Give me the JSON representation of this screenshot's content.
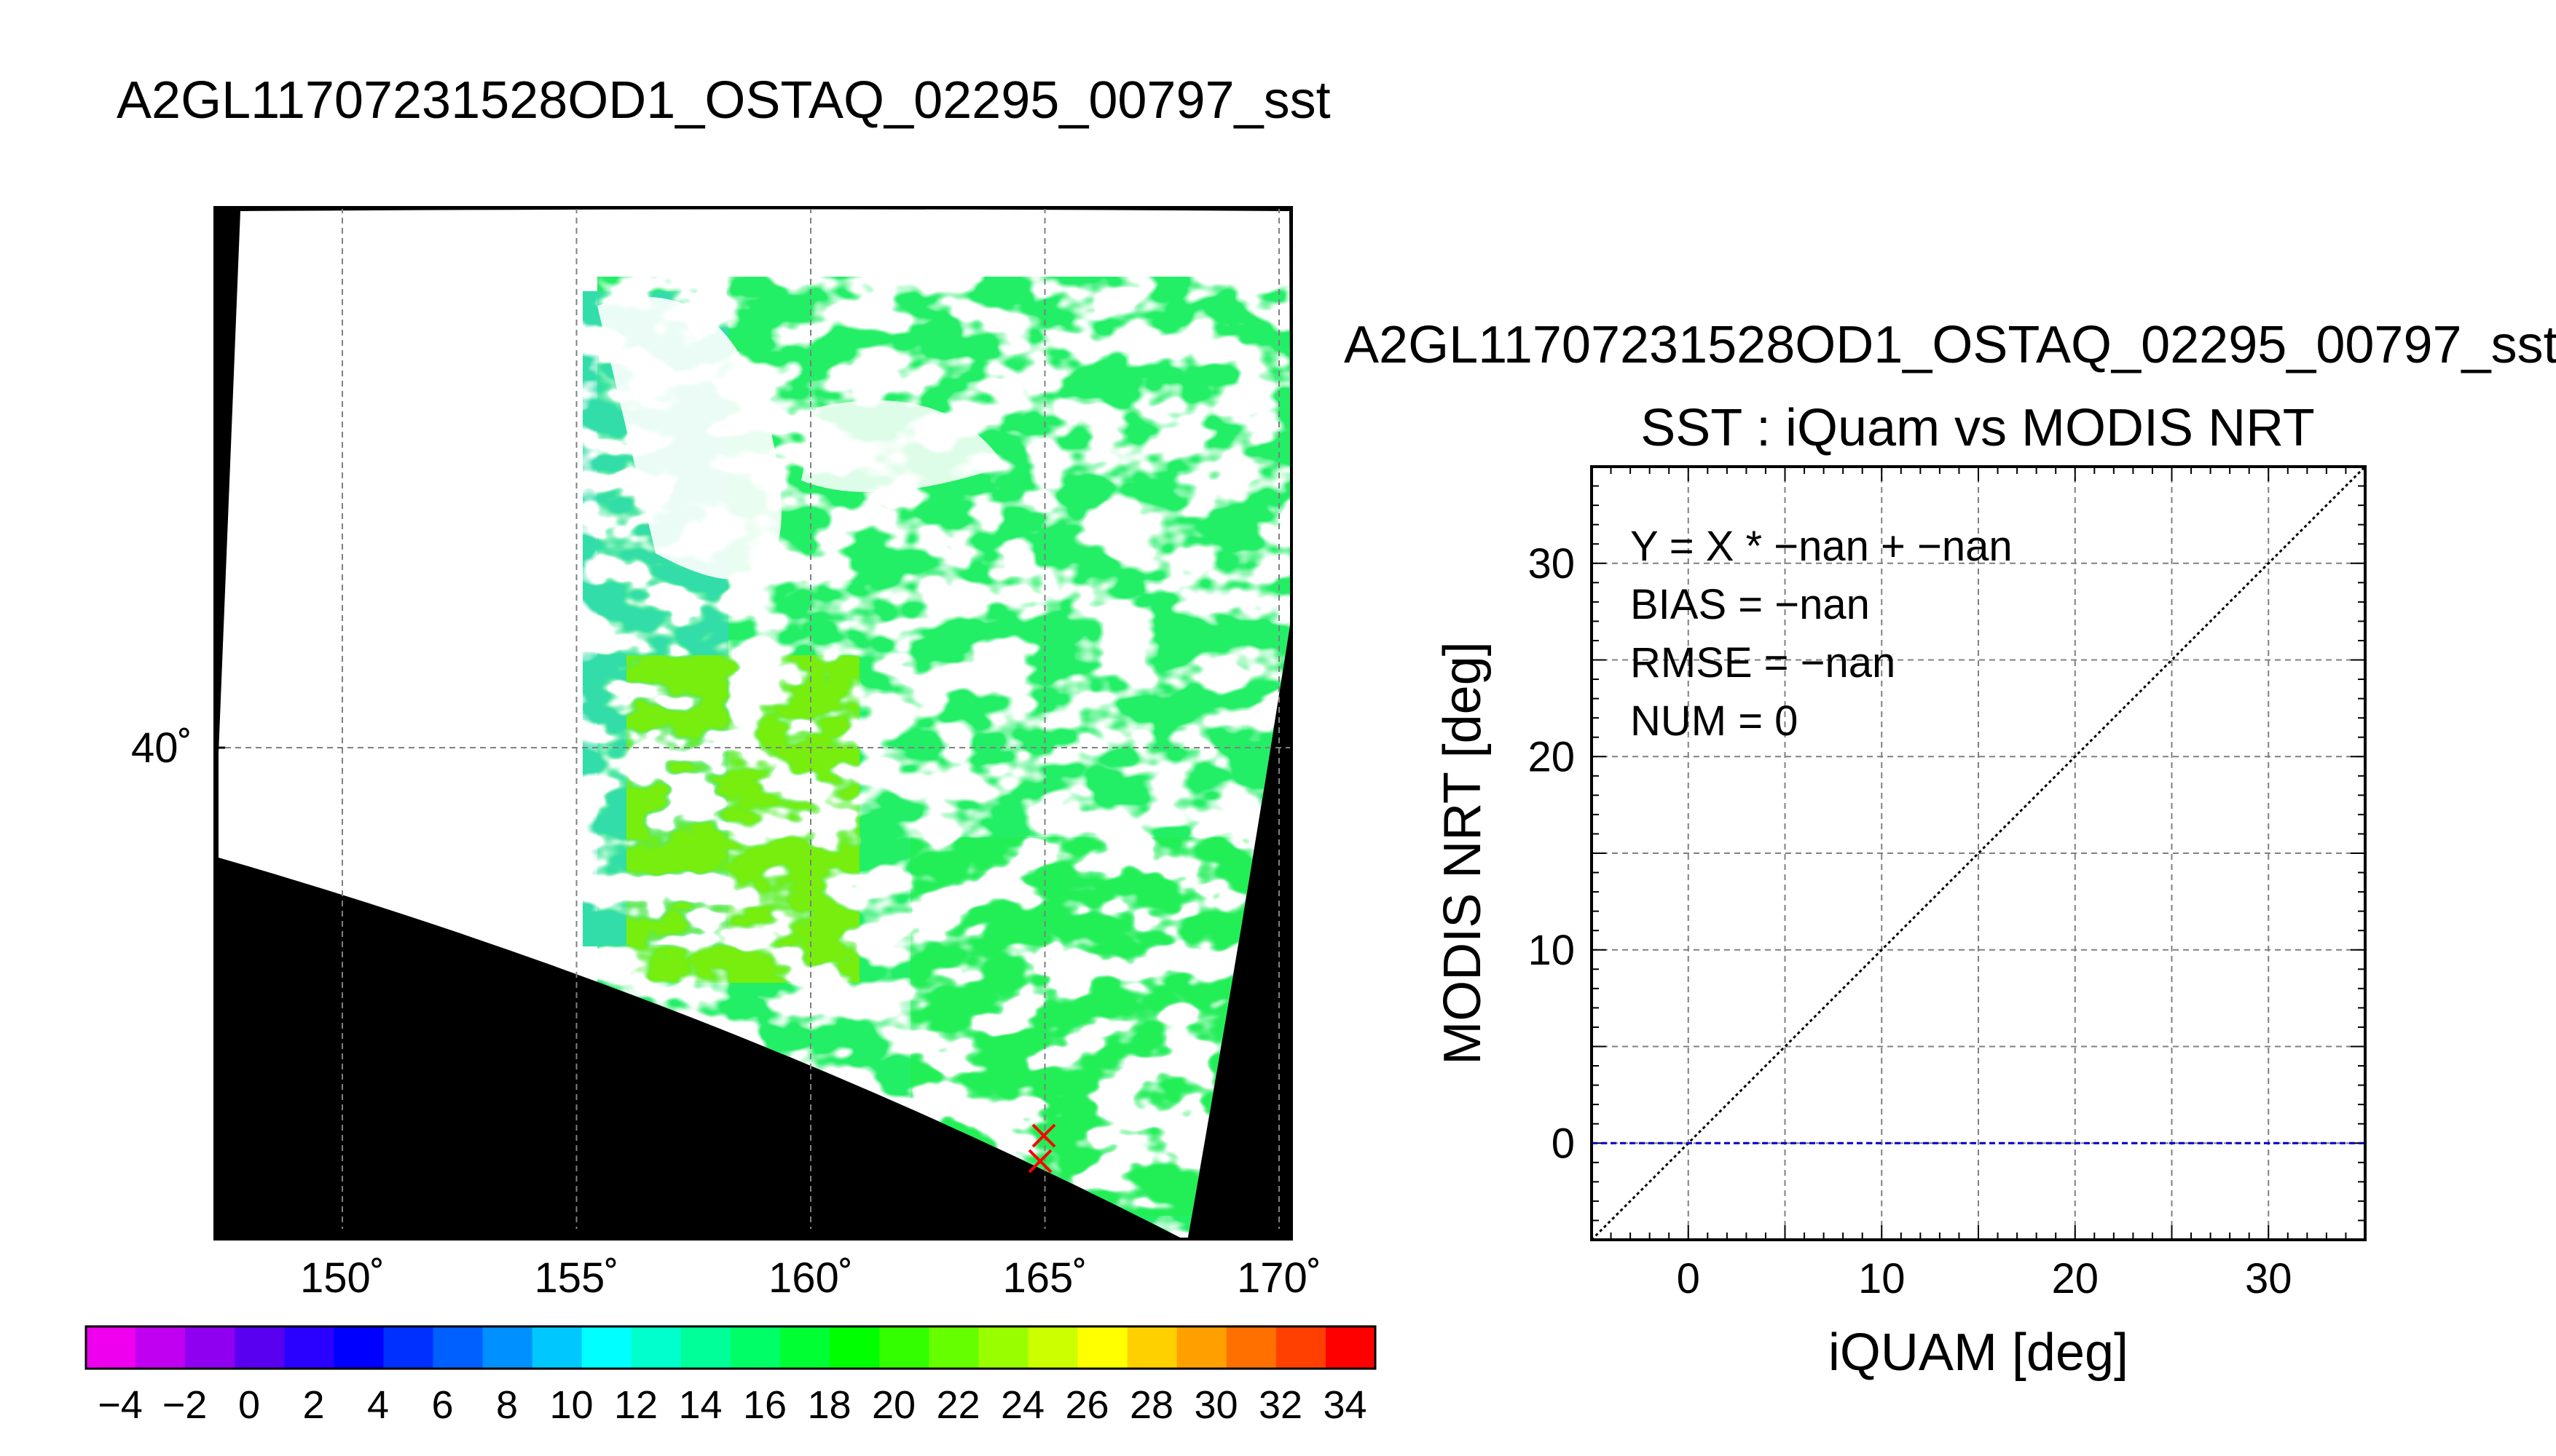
{
  "map_panel": {
    "title": "A2GL11707231528OD1_OSTAQ_02295_00797_sst",
    "lon_ticks": [
      150,
      155,
      160,
      165,
      170
    ],
    "lat_ticks": [
      40
    ],
    "degree_mark": "˚",
    "colors": {
      "background": "#000000",
      "cloud": "#ffffff",
      "grid": "#808080",
      "matchup_marker": "#ff0000"
    },
    "colorbar": {
      "tick_labels": [
        "−4",
        "−2",
        "0",
        "2",
        "4",
        "6",
        "8",
        "10",
        "12",
        "14",
        "16",
        "18",
        "20",
        "22",
        "24",
        "26",
        "28",
        "30",
        "32",
        "34"
      ],
      "colors": [
        "#ee00ee",
        "#c000f0",
        "#9000f0",
        "#5a00f0",
        "#2a00ff",
        "#0000ff",
        "#0030ff",
        "#0060ff",
        "#0090ff",
        "#00c8ff",
        "#00ffff",
        "#00ffcc",
        "#00ff99",
        "#00ff66",
        "#00ff33",
        "#00ff00",
        "#33ff00",
        "#66ff00",
        "#99ff00",
        "#ccff00",
        "#ffff00",
        "#ffd000",
        "#ffa000",
        "#ff7000",
        "#ff4000",
        "#ff0000"
      ]
    }
  },
  "scatter_panel": {
    "title": "A2GL11707231528OD1_OSTAQ_02295_00797_sst",
    "subtitle": "SST : iQuam vs MODIS NRT",
    "stats": [
      "Y = X * −nan + −nan",
      "BIAS = −nan",
      "RMSE = −nan",
      "NUM = 0"
    ]
  },
  "chart_data": {
    "type": "scatter",
    "xlabel": "iQUAM [deg]",
    "ylabel": "MODIS NRT [deg]",
    "xlim": [
      -5,
      35
    ],
    "ylim": [
      -5,
      35
    ],
    "x_ticks": [
      0,
      10,
      20,
      30
    ],
    "y_ticks": [
      0,
      10,
      20,
      30
    ],
    "grid": true,
    "points": [],
    "reference_lines": [
      {
        "name": "1:1",
        "slope": 1,
        "intercept": 0,
        "color": "#000000",
        "style": "dotted"
      },
      {
        "name": "zero",
        "slope": 0,
        "intercept": 0,
        "color": "#0000cc",
        "style": "dashed"
      }
    ]
  }
}
